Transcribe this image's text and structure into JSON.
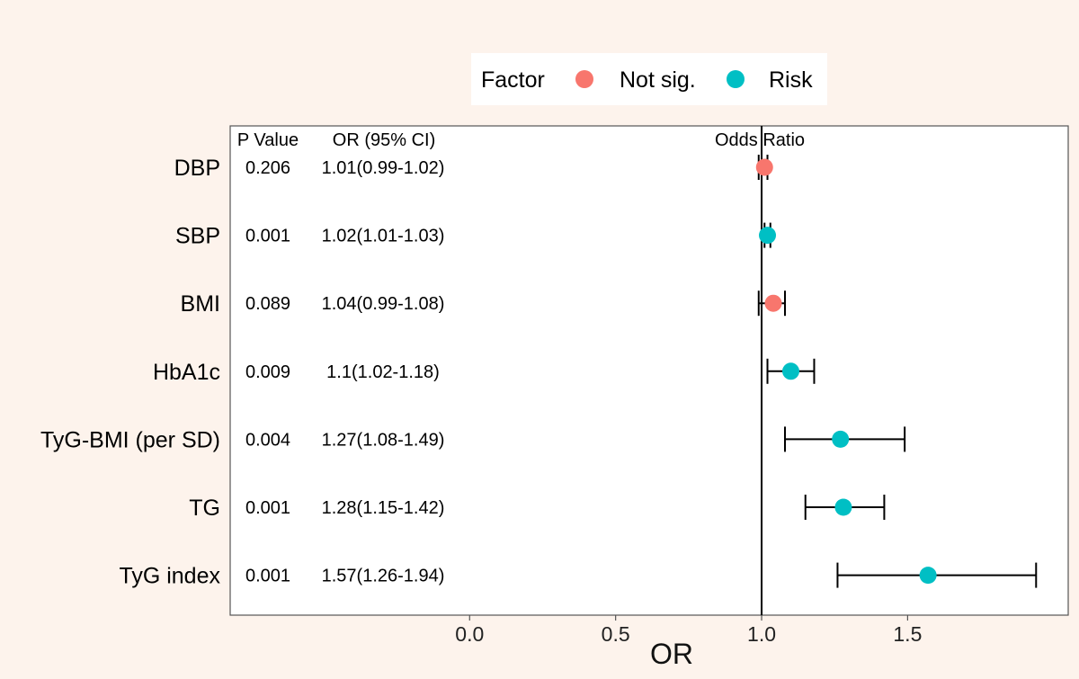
{
  "chart_data": {
    "type": "forest",
    "legend": {
      "title": "Factor",
      "entries": [
        {
          "label": "Not sig.",
          "color": "#f8766d"
        },
        {
          "label": "Risk",
          "color": "#00bfc4"
        }
      ],
      "position": "top"
    },
    "columns": {
      "p_value": "P Value",
      "or_ci": "OR (95% CI)",
      "odds_ratio": "Odds Ratio"
    },
    "xlabel": "OR",
    "xticks": [
      "0.0",
      "0.5",
      "1.0",
      "1.5"
    ],
    "xlim": [
      -0.82,
      2.05
    ],
    "reference_line": 1.0,
    "rows": [
      {
        "label": "DBP",
        "p": "0.206",
        "or_text": "1.01(0.99-1.02)",
        "or": 1.01,
        "lo": 0.99,
        "hi": 1.02,
        "group": "Not sig."
      },
      {
        "label": "SBP",
        "p": "0.001",
        "or_text": "1.02(1.01-1.03)",
        "or": 1.02,
        "lo": 1.01,
        "hi": 1.03,
        "group": "Risk"
      },
      {
        "label": "BMI",
        "p": "0.089",
        "or_text": "1.04(0.99-1.08)",
        "or": 1.04,
        "lo": 0.99,
        "hi": 1.08,
        "group": "Not sig."
      },
      {
        "label": "HbA1c",
        "p": "0.009",
        "or_text": "1.1(1.02-1.18)",
        "or": 1.1,
        "lo": 1.02,
        "hi": 1.18,
        "group": "Risk"
      },
      {
        "label": "TyG-BMI (per SD)",
        "p": "0.004",
        "or_text": "1.27(1.08-1.49)",
        "or": 1.27,
        "lo": 1.08,
        "hi": 1.49,
        "group": "Risk"
      },
      {
        "label": "TG",
        "p": "0.001",
        "or_text": "1.28(1.15-1.42)",
        "or": 1.28,
        "lo": 1.15,
        "hi": 1.42,
        "group": "Risk"
      },
      {
        "label": "TyG index",
        "p": "0.001",
        "or_text": "1.57(1.26-1.94)",
        "or": 1.57,
        "lo": 1.26,
        "hi": 1.94,
        "group": "Risk"
      }
    ]
  }
}
